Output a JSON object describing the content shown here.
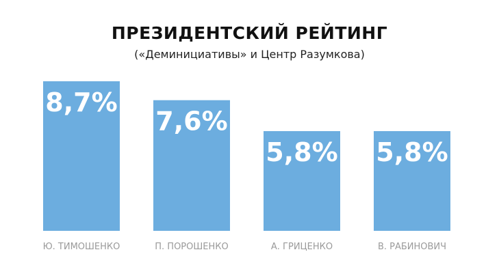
{
  "title": "ПРЕЗИДЕНТСКИЙ РЕЙТИНГ",
  "subtitle": "(«Деминициативы» и Центр Разумкова)",
  "colors": {
    "bar": "#6caddf",
    "bar_label": "#ffffff",
    "category_label": "#9a9a9a"
  },
  "chart_data": {
    "type": "bar",
    "title": "ПРЕЗИДЕНТСКИЙ РЕЙТИНГ",
    "subtitle": "(«Деминициативы» и Центр Разумкова)",
    "categories": [
      "Ю. ТИМОШЕНКО",
      "П. ПОРОШЕНКО",
      "А. ГРИЦЕНКО",
      "В. РАБИНОВИЧ"
    ],
    "values": [
      8.7,
      7.6,
      5.8,
      5.8
    ],
    "value_labels": [
      "8,7%",
      "7,6%",
      "5,8%",
      "5,8%"
    ],
    "xlabel": "",
    "ylabel": "",
    "grid": false,
    "legend": "none"
  }
}
